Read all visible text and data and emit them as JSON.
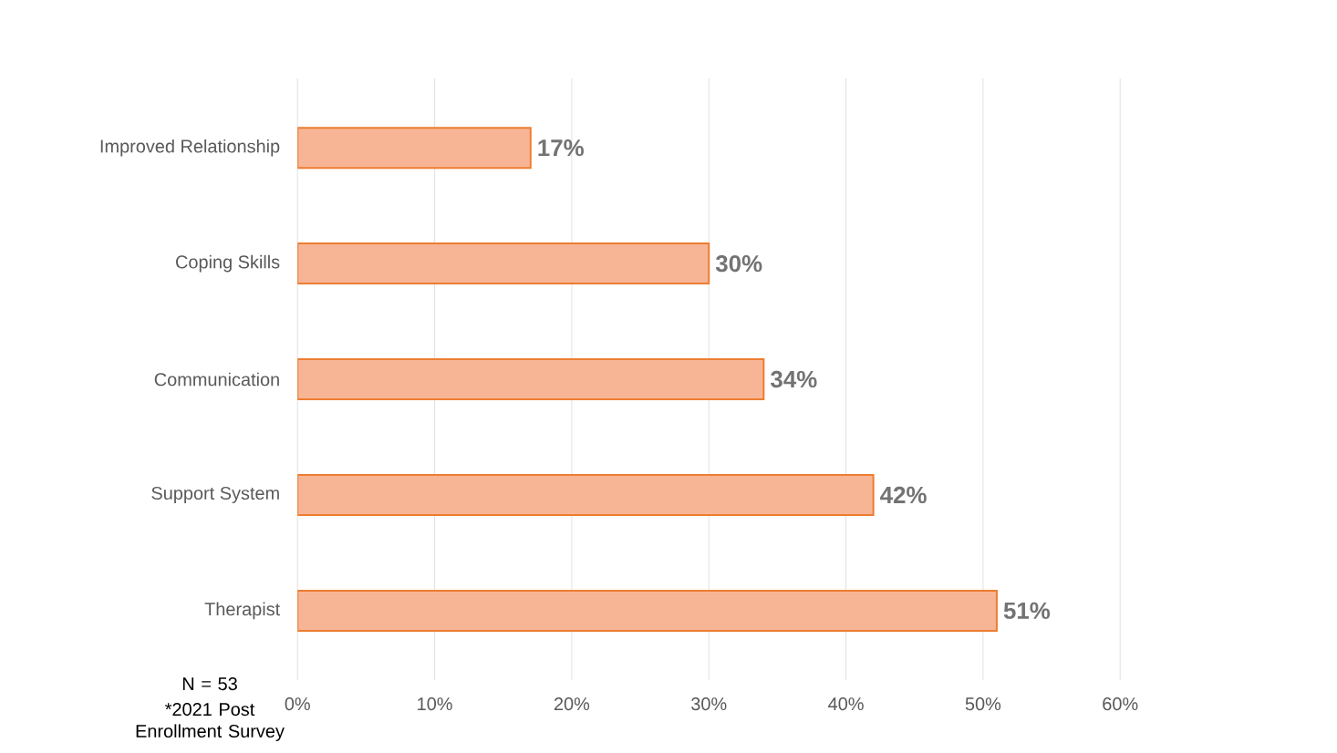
{
  "chart_data": {
    "type": "bar",
    "orientation": "horizontal",
    "categories": [
      "Improved Relationship",
      "Coping Skills",
      "Communication",
      "Support System",
      "Therapist"
    ],
    "values": [
      17,
      30,
      34,
      42,
      51
    ],
    "value_labels": [
      "17%",
      "30%",
      "34%",
      "42%",
      "51%"
    ],
    "color": "#f7b596",
    "xlim": [
      0,
      60
    ],
    "xticks": [
      {
        "value": 0,
        "label": "0%"
      },
      {
        "value": 10,
        "label": "10%"
      },
      {
        "value": 20,
        "label": "20%"
      },
      {
        "value": 30,
        "label": "30%"
      },
      {
        "value": 40,
        "label": "40%"
      },
      {
        "value": 50,
        "label": "50%"
      },
      {
        "value": 60,
        "label": "60%"
      }
    ],
    "grid": "x",
    "annotations": [
      "N = 53",
      "*2021 Post Enrollment Survey"
    ]
  }
}
